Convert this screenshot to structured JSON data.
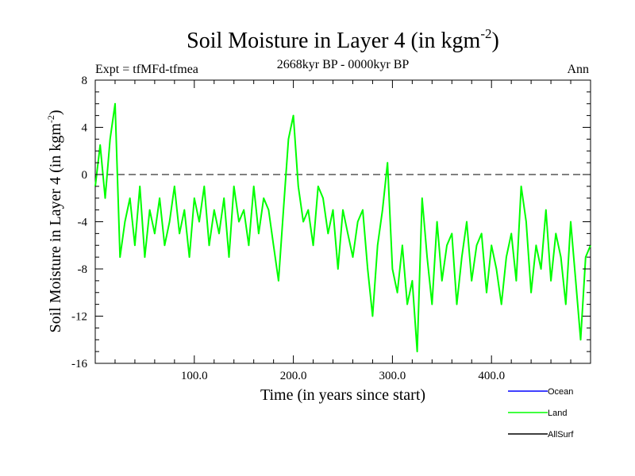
{
  "chart_data": {
    "type": "line",
    "title": "Soil Moisture in Layer 4 (in kgm",
    "title_sup": "-2",
    "title_close": ")",
    "subtitle_left": "Expt = tfMFd-tfmea",
    "subtitle_center": "2668kyr BP - 0000kyr BP",
    "subtitle_right": "Ann",
    "xlabel": "Time (in years since start)",
    "ylabel": "Soil Moisture in Layer 4 (in kgm",
    "ylabel_sup": "-2",
    "ylabel_close": ")",
    "xlim": [
      0,
      500
    ],
    "ylim": [
      -16,
      8
    ],
    "xticks": [
      100,
      200,
      300,
      400
    ],
    "xtick_labels": [
      "100.0",
      "200.0",
      "300.0",
      "400.0"
    ],
    "yticks": [
      8,
      4,
      0,
      -4,
      -8,
      -12,
      -16
    ],
    "ytick_labels": [
      "8",
      "4",
      "0",
      "-4",
      "-8",
      "-12",
      "-16"
    ],
    "reference_line": 0,
    "legend": [
      {
        "name": "Ocean",
        "color": "#0000ff"
      },
      {
        "name": "Land",
        "color": "#00ff00"
      },
      {
        "name": "AllSurf",
        "color": "#000000"
      }
    ],
    "series": [
      {
        "name": "Land",
        "color": "#00ff00",
        "x": [
          0,
          5,
          10,
          15,
          20,
          25,
          30,
          35,
          40,
          45,
          50,
          55,
          60,
          65,
          70,
          75,
          80,
          85,
          90,
          95,
          100,
          105,
          110,
          115,
          120,
          125,
          130,
          135,
          140,
          145,
          150,
          155,
          160,
          165,
          170,
          175,
          180,
          185,
          190,
          195,
          200,
          205,
          210,
          215,
          220,
          225,
          230,
          235,
          240,
          245,
          250,
          255,
          260,
          265,
          270,
          275,
          280,
          285,
          290,
          295,
          300,
          305,
          310,
          315,
          320,
          325,
          330,
          335,
          340,
          345,
          350,
          355,
          360,
          365,
          370,
          375,
          380,
          385,
          390,
          395,
          400,
          405,
          410,
          415,
          420,
          425,
          430,
          435,
          440,
          445,
          450,
          455,
          460,
          465,
          470,
          475,
          480,
          485,
          490,
          495,
          500
        ],
        "values": [
          -1,
          2.5,
          -2,
          3,
          6,
          -7,
          -4,
          -2,
          -6,
          -1,
          -7,
          -3,
          -5,
          -2,
          -6,
          -4,
          -1,
          -5,
          -3,
          -7,
          -2,
          -4,
          -1,
          -6,
          -3,
          -5,
          -2,
          -7,
          -1,
          -4,
          -3,
          -6,
          -1,
          -5,
          -2,
          -3,
          -6,
          -9,
          -3,
          3,
          5,
          -1,
          -4,
          -3,
          -6,
          -1,
          -2,
          -5,
          -3,
          -8,
          -3,
          -5,
          -7,
          -4,
          -3,
          -8,
          -12,
          -6,
          -3,
          1,
          -8,
          -10,
          -6,
          -11,
          -9,
          -15,
          -2,
          -7,
          -11,
          -4,
          -9,
          -6,
          -5,
          -11,
          -7,
          -4,
          -9,
          -6,
          -5,
          -10,
          -6,
          -8,
          -11,
          -7,
          -5,
          -9,
          -1,
          -4,
          -10,
          -6,
          -8,
          -3,
          -9,
          -5,
          -7,
          -11,
          -4,
          -9,
          -14,
          -7,
          -6
        ]
      }
    ]
  }
}
